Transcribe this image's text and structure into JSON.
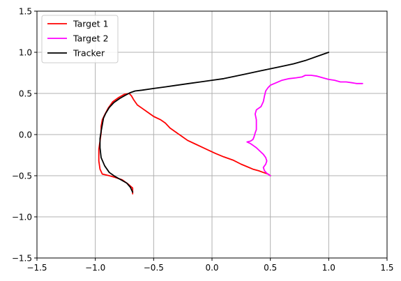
{
  "chart_data": {
    "type": "line",
    "title": "",
    "xlabel": "",
    "ylabel": "",
    "xlim": [
      -1.5,
      1.5
    ],
    "ylim": [
      -1.5,
      1.5
    ],
    "xticks": [
      "−1.5",
      "−1.0",
      "−0.5",
      "0.0",
      "0.5",
      "1.0",
      "1.5"
    ],
    "yticks": [
      "−1.5",
      "−1.0",
      "−0.5",
      "0.0",
      "0.5",
      "1.0",
      "1.5"
    ],
    "grid": true,
    "legend_position": "upper-left",
    "series": [
      {
        "name": "Target 1",
        "color": "#ff0000",
        "x": [
          -0.68,
          -0.68,
          -0.72,
          -0.77,
          -0.83,
          -0.88,
          -0.94,
          -0.96,
          -0.97,
          -0.97,
          -0.96,
          -0.95,
          -0.95,
          -0.94,
          -0.92,
          -0.89,
          -0.85,
          -0.8,
          -0.75,
          -0.71,
          -0.69,
          -0.67,
          -0.64,
          -0.6,
          -0.55,
          -0.5,
          -0.44,
          -0.4,
          -0.36,
          -0.31,
          -0.26,
          -0.21,
          -0.15,
          -0.09,
          -0.03,
          0.03,
          0.1,
          0.18,
          0.25,
          0.3,
          0.35,
          0.4,
          0.44,
          0.48,
          0.5
        ],
        "y": [
          -0.72,
          -0.65,
          -0.6,
          -0.55,
          -0.52,
          -0.5,
          -0.48,
          -0.42,
          -0.32,
          -0.18,
          -0.08,
          0.02,
          0.1,
          0.18,
          0.24,
          0.32,
          0.4,
          0.45,
          0.49,
          0.5,
          0.47,
          0.42,
          0.36,
          0.32,
          0.27,
          0.22,
          0.18,
          0.14,
          0.08,
          0.03,
          -0.02,
          -0.07,
          -0.11,
          -0.15,
          -0.19,
          -0.23,
          -0.27,
          -0.31,
          -0.36,
          -0.39,
          -0.42,
          -0.44,
          -0.46,
          -0.48,
          -0.5
        ]
      },
      {
        "name": "Target 2",
        "color": "#ff00ff",
        "x": [
          0.5,
          0.47,
          0.45,
          0.44,
          0.46,
          0.47,
          0.46,
          0.44,
          0.41,
          0.38,
          0.35,
          0.33,
          0.3,
          0.33,
          0.35,
          0.36,
          0.37,
          0.38,
          0.38,
          0.38,
          0.37,
          0.38,
          0.4,
          0.42,
          0.44,
          0.45,
          0.46,
          0.48,
          0.5,
          0.55,
          0.6,
          0.66,
          0.72,
          0.77,
          0.8,
          0.85,
          0.9,
          0.95,
          1.0,
          1.05,
          1.1,
          1.15,
          1.2,
          1.24,
          1.29
        ],
        "y": [
          -0.5,
          -0.47,
          -0.44,
          -0.4,
          -0.36,
          -0.32,
          -0.28,
          -0.24,
          -0.2,
          -0.16,
          -0.13,
          -0.11,
          -0.09,
          -0.08,
          -0.06,
          -0.03,
          0.02,
          0.06,
          0.12,
          0.18,
          0.25,
          0.3,
          0.32,
          0.34,
          0.4,
          0.47,
          0.53,
          0.57,
          0.6,
          0.63,
          0.66,
          0.68,
          0.69,
          0.7,
          0.72,
          0.72,
          0.71,
          0.69,
          0.67,
          0.66,
          0.64,
          0.64,
          0.63,
          0.62,
          0.62
        ]
      },
      {
        "name": "Tracker",
        "color": "#000000",
        "x": [
          -0.68,
          -0.7,
          -0.73,
          -0.78,
          -0.83,
          -0.88,
          -0.92,
          -0.95,
          -0.96,
          -0.96,
          -0.95,
          -0.94,
          -0.93,
          -0.91,
          -0.88,
          -0.84,
          -0.79,
          -0.74,
          -0.7,
          -0.66,
          -0.6,
          -0.5,
          -0.4,
          -0.3,
          -0.2,
          -0.1,
          0.0,
          0.1,
          0.2,
          0.3,
          0.4,
          0.5,
          0.6,
          0.7,
          0.8,
          0.9,
          1.0
        ],
        "y": [
          -0.7,
          -0.64,
          -0.59,
          -0.55,
          -0.51,
          -0.46,
          -0.38,
          -0.28,
          -0.16,
          -0.05,
          0.04,
          0.12,
          0.2,
          0.26,
          0.33,
          0.39,
          0.44,
          0.48,
          0.51,
          0.53,
          0.54,
          0.56,
          0.58,
          0.6,
          0.62,
          0.64,
          0.66,
          0.68,
          0.71,
          0.74,
          0.77,
          0.8,
          0.83,
          0.86,
          0.9,
          0.95,
          1.0
        ]
      }
    ]
  }
}
